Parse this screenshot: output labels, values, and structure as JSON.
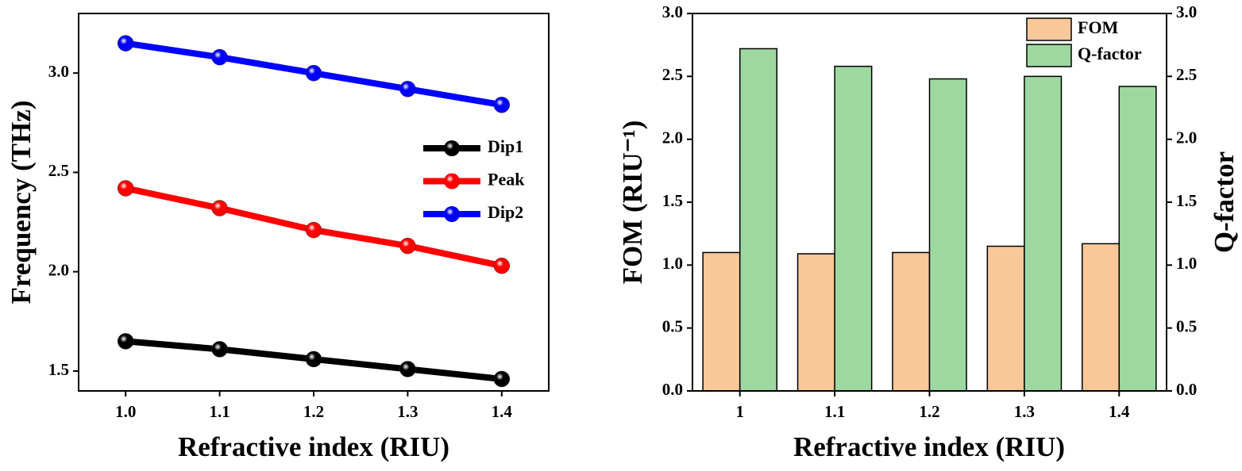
{
  "chart_data": [
    {
      "type": "line",
      "xlabel": "Refractive index (RIU)",
      "ylabel": "Frequency (THz)",
      "x": [
        1.0,
        1.1,
        1.2,
        1.3,
        1.4
      ],
      "xlim": [
        0.95,
        1.45
      ],
      "xticks": [
        {
          "value": 1,
          "label": "1.0"
        },
        1.1,
        1.2,
        1.3,
        1.4
      ],
      "ylim": [
        1.4,
        3.3
      ],
      "yticks": [
        1.5,
        {
          "value": 2,
          "label": "2.0"
        },
        2.5,
        {
          "value": 3,
          "label": "3.0"
        }
      ],
      "legend": "right",
      "series": [
        {
          "name": "Dip1",
          "color": "#000000",
          "values": [
            1.65,
            1.61,
            1.56,
            1.51,
            1.46
          ]
        },
        {
          "name": "Peak",
          "color": "#ff0000",
          "values": [
            2.42,
            2.32,
            2.21,
            2.13,
            2.03
          ]
        },
        {
          "name": "Dip2",
          "color": "#0000ff",
          "values": [
            3.15,
            3.08,
            3.0,
            2.92,
            2.84
          ]
        }
      ]
    },
    {
      "type": "bar",
      "xlabel": "Refractive index (RIU)",
      "ylabel": "FOM (RIU⁻¹)",
      "y2label": "Q-factor",
      "categories": [
        "1",
        "1.1",
        "1.2",
        "1.3",
        "1.4"
      ],
      "ylim": [
        0,
        3
      ],
      "yticks": [
        {
          "value": 0,
          "label": "0.0"
        },
        0.5,
        {
          "value": 1,
          "label": "1.0"
        },
        1.5,
        {
          "value": 2,
          "label": "2.0"
        },
        2.5,
        {
          "value": 3,
          "label": "3.0"
        }
      ],
      "y2lim": [
        0,
        3
      ],
      "y2ticks": [
        {
          "value": 0,
          "label": "0.0"
        },
        0.5,
        {
          "value": 1,
          "label": "1.0"
        },
        1.5,
        {
          "value": 2,
          "label": "2.0"
        },
        2.5,
        {
          "value": 3,
          "label": "3.0"
        }
      ],
      "legend": "upper right",
      "series": [
        {
          "name": "FOM",
          "color": "#f8c89a",
          "values": [
            1.1,
            1.09,
            1.1,
            1.15,
            1.17
          ]
        },
        {
          "name": "Q-factor",
          "color": "#9dd8a0",
          "axis": "y2",
          "values": [
            2.72,
            2.58,
            2.48,
            2.5,
            2.42
          ]
        }
      ]
    }
  ]
}
